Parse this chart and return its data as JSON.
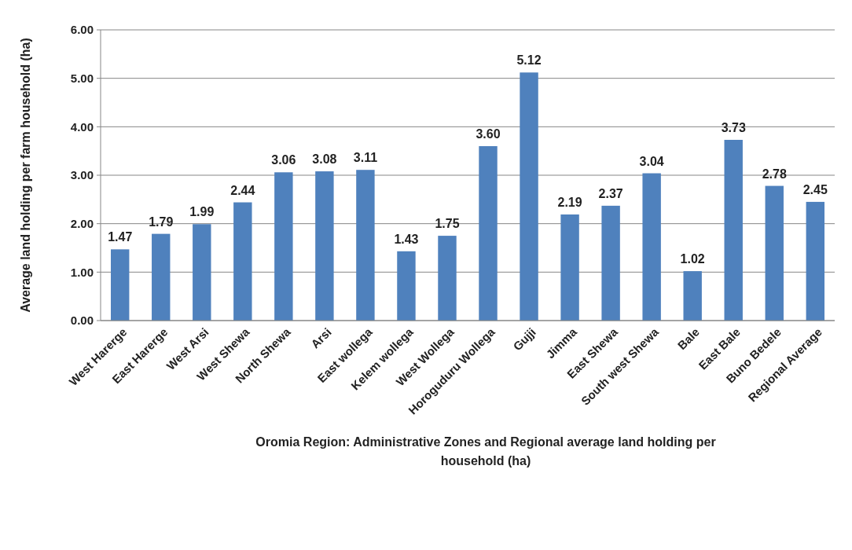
{
  "chart_data": {
    "type": "bar",
    "categories": [
      "West Harerge",
      "East Harerge",
      "West Arsi",
      "West Shewa",
      "North Shewa",
      "Arsi",
      "East wollega",
      "Kelem wollega",
      "West Wollega",
      "Horoguduru Wollega",
      "Gujji",
      "Jimma",
      "East Shewa",
      "South west Shewa",
      "Bale",
      "East Bale",
      "Buno Bedele",
      "Regional Average"
    ],
    "values": [
      1.47,
      1.79,
      1.99,
      2.44,
      3.06,
      3.08,
      3.11,
      1.43,
      1.75,
      3.6,
      5.12,
      2.19,
      2.37,
      3.04,
      1.02,
      3.73,
      2.78,
      2.45
    ],
    "value_labels": [
      "1.47",
      "1.79",
      "1.99",
      "2.44",
      "3.06",
      "3.08",
      "3.11",
      "1.43",
      "1.75",
      "3.60",
      "5.12",
      "2.19",
      "2.37",
      "3.04",
      "1.02",
      "3.73",
      "2.78",
      "2.45"
    ],
    "color": "#4f81bd",
    "ylabel": "Average land holding per farm household (ha)",
    "xlabel": "Oromia Region: Administrative Zones and Regional average land holding per household (ha)",
    "ylim": [
      0,
      6
    ],
    "yticks": [
      {
        "value": 0,
        "label": "0.00"
      },
      {
        "value": 1,
        "label": "1.00"
      },
      {
        "value": 2,
        "label": "2.00"
      },
      {
        "value": 3,
        "label": "3.00"
      },
      {
        "value": 4,
        "label": "4.00"
      },
      {
        "value": 5,
        "label": "5.00"
      },
      {
        "value": 6,
        "label": "6.00"
      }
    ],
    "grid": "y"
  }
}
